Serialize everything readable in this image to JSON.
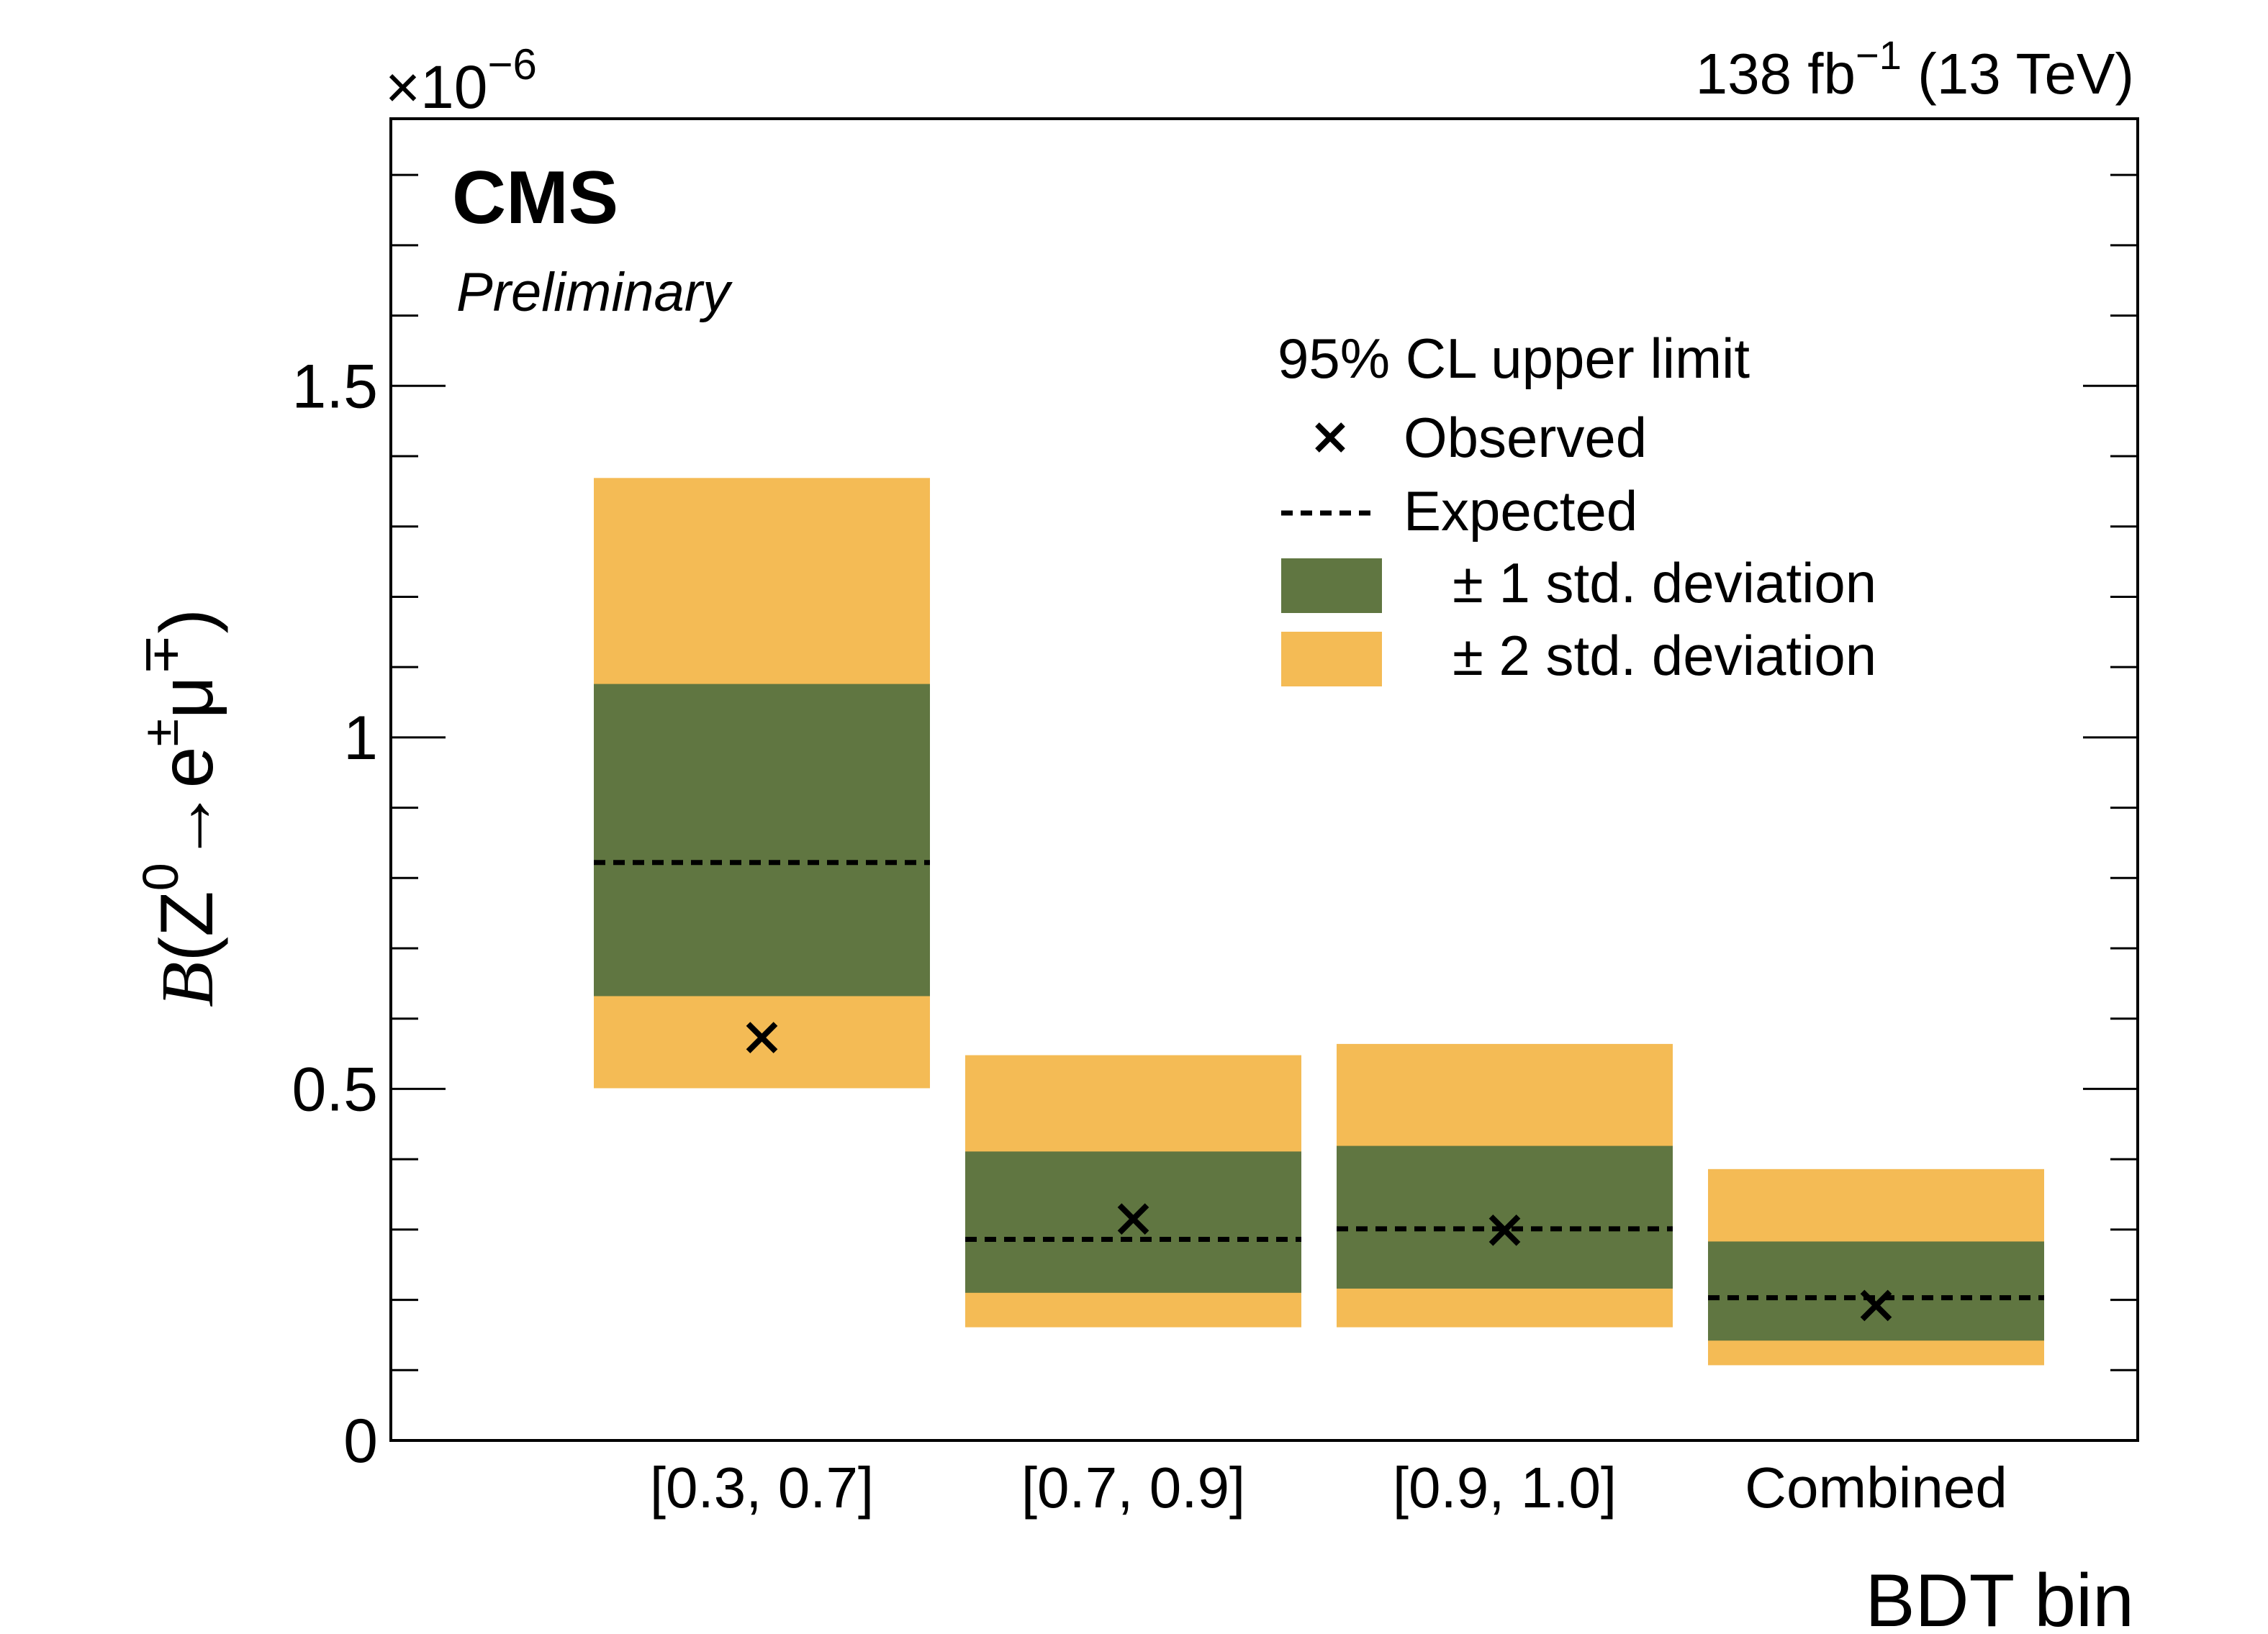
{
  "colors": {
    "one_sigma": "#607641",
    "two_sigma": "#F4BB55",
    "axis": "#000000"
  },
  "header": {
    "exponent_prefix": "×10",
    "exponent_power": "−6",
    "lumi_value": "138 fb",
    "lumi_power": "−1",
    "lumi_energy": "(13 TeV)"
  },
  "labels": {
    "cms": "CMS",
    "preliminary": "Preliminary"
  },
  "yaxis": {
    "script_b": "B",
    "open_paren": "(",
    "z_letter": "Z",
    "z_power": "0",
    "arrow": "→",
    "e_letter": "e",
    "e_charge": "±",
    "mu_letter": "μ",
    "mu_charge": "∓",
    "close_paren": ")"
  },
  "legend": {
    "title": "95% CL upper limit",
    "entries": [
      {
        "marker": "cross",
        "label": "Observed"
      },
      {
        "marker": "dashed",
        "label": "Expected"
      },
      {
        "marker": "band1",
        "label": "± 1 std. deviation"
      },
      {
        "marker": "band2",
        "label": "± 2 std. deviation"
      }
    ]
  },
  "chart_data": {
    "type": "brazil-band",
    "title": "95% CL upper limit",
    "xlabel": "BDT bin",
    "ylabel": "B(Z0→e±μ∓)",
    "y_scale_factor": "1e-6",
    "ylim": [
      0,
      1.88
    ],
    "yticks": [
      0,
      0.5,
      1,
      1.5
    ],
    "ytick_labels": [
      "0",
      "0.5",
      "1",
      "1.5"
    ],
    "categories": [
      "[0.3, 0.7]",
      "[0.7, 0.9]",
      "[0.9, 1.0]",
      "Combined"
    ],
    "observed": [
      0.573,
      0.315,
      0.299,
      0.192
    ],
    "expected": [
      0.822,
      0.286,
      0.301,
      0.203
    ],
    "one_sigma_low": [
      0.632,
      0.21,
      0.216,
      0.142
    ],
    "one_sigma_high": [
      1.076,
      0.411,
      0.419,
      0.283
    ],
    "two_sigma_low": [
      0.501,
      0.161,
      0.161,
      0.107
    ],
    "two_sigma_high": [
      1.369,
      0.548,
      0.564,
      0.386
    ]
  }
}
